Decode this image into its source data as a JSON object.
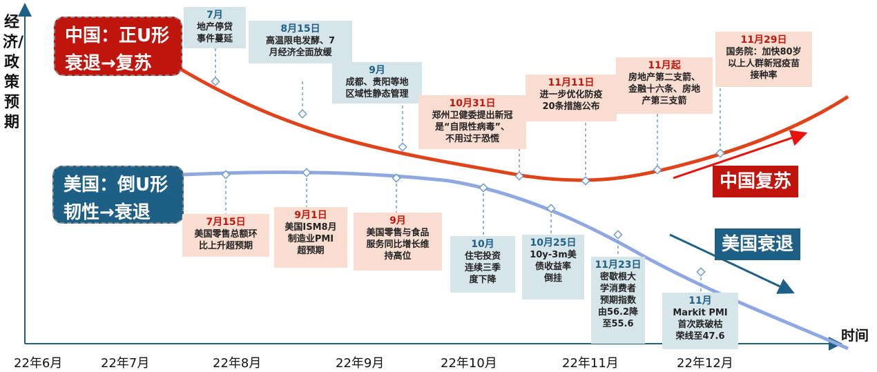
{
  "axis": {
    "y_label": "经济/政策预期",
    "x_label": "时间",
    "x_ticks": [
      "22年6月",
      "22年7月",
      "22年8月",
      "22年9月",
      "22年10月",
      "22年11月",
      "22年12月"
    ]
  },
  "china": {
    "title_line1": "中国：正U形",
    "title_line2": "衰退→复苏",
    "tag": "中国复苏",
    "curve_color": "#e0421a",
    "box_color": "#c0150d",
    "events": [
      {
        "date": "7月",
        "text": "地产停贷\n事件蔓延"
      },
      {
        "date": "8月15日",
        "text": "高温限电发酵、7\n月经济全面放缓"
      },
      {
        "date": "9月",
        "text": "成都、贵阳等地\n区域性静态管理"
      },
      {
        "date": "10月31日",
        "text": "郑州卫健委提出新冠\n是“自限性病毒”、\n不用过于恐慌"
      },
      {
        "date": "11月11日",
        "text": "进一步优化防疫\n20条措施公布"
      },
      {
        "date": "11月起",
        "text": "房地产第二支箭、\n金融十六条、房地\n产第三支箭"
      },
      {
        "date": "11月29日",
        "text": "国务院：加快80岁\n以上人群新冠疫苗\n接种率"
      }
    ]
  },
  "us": {
    "title_line1": "美国：倒U形",
    "title_line2": "韧性→衰退",
    "tag": "美国衰退",
    "curve_color": "#8fa8e0",
    "box_color": "#1e5f86",
    "events": [
      {
        "date": "7月15日",
        "text": "美国零售总额环\n比上升超预期"
      },
      {
        "date": "9月1日",
        "text": "美国ISM8月\n制造业PMI\n超预期"
      },
      {
        "date": "9月",
        "text": "美国零售与食品\n服务同比增长维\n持高位"
      },
      {
        "date": "10月",
        "text": "住宅投资\n连续三季\n度下降"
      },
      {
        "date": "10月25日",
        "text": "10y-3m美\n债收益率\n倒挂"
      },
      {
        "date": "11月23日",
        "text": "密歇根大\n学消费者\n预期指数\n由56.2降\n至55.6"
      },
      {
        "date": "11月",
        "text": "Markit PMI\n首次跌破枯\n荣线至47.6"
      }
    ]
  }
}
